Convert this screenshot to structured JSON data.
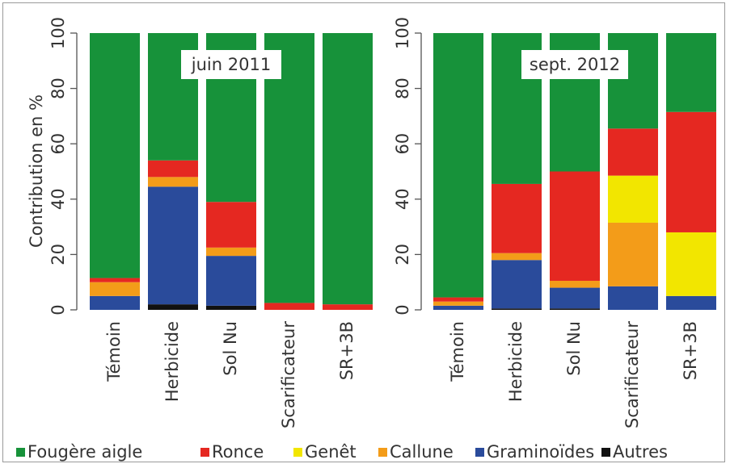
{
  "ylabel": "Contribution en %",
  "legend": [
    {
      "name": "Fougère aigle",
      "color": "#17923a"
    },
    {
      "name": "Ronce",
      "color": "#e52821"
    },
    {
      "name": "Genêt",
      "color": "#f2e600"
    },
    {
      "name": "Callune",
      "color": "#f39c19"
    },
    {
      "name": "Graminoïdes",
      "color": "#2a4b9b"
    },
    {
      "name": "Autres",
      "color": "#111111"
    }
  ],
  "chart_data": [
    {
      "type": "bar",
      "stacked": true,
      "title": "juin 2011",
      "ylim": [
        0,
        100
      ],
      "yticks": [
        0,
        20,
        40,
        60,
        80,
        100
      ],
      "categories": [
        "Témoin",
        "Herbicide",
        "Sol Nu",
        "Scarificateur",
        "SR+3B"
      ],
      "series": [
        {
          "name": "Autres",
          "color": "#111111",
          "values": [
            0,
            2,
            1.5,
            0,
            0
          ]
        },
        {
          "name": "Graminoïdes",
          "color": "#2a4b9b",
          "values": [
            5,
            42.5,
            18,
            0,
            0
          ]
        },
        {
          "name": "Callune",
          "color": "#f39c19",
          "values": [
            5,
            3.5,
            3,
            0,
            0
          ]
        },
        {
          "name": "Genêt",
          "color": "#f2e600",
          "values": [
            0,
            0,
            0,
            0,
            0
          ]
        },
        {
          "name": "Ronce",
          "color": "#e52821",
          "values": [
            1.5,
            6,
            16.5,
            2.5,
            2
          ]
        },
        {
          "name": "Fougère aigle",
          "color": "#17923a",
          "values": [
            88.5,
            46,
            61,
            97.5,
            98
          ]
        }
      ]
    },
    {
      "type": "bar",
      "stacked": true,
      "title": "sept. 2012",
      "ylim": [
        0,
        100
      ],
      "yticks": [
        0,
        20,
        40,
        60,
        80,
        100
      ],
      "categories": [
        "Témoin",
        "Herbicide",
        "Sol Nu",
        "Scarificateur",
        "SR+3B"
      ],
      "series": [
        {
          "name": "Autres",
          "color": "#111111",
          "values": [
            0,
            0.5,
            0.5,
            0,
            0
          ]
        },
        {
          "name": "Graminoïdes",
          "color": "#2a4b9b",
          "values": [
            1.5,
            17.5,
            7.5,
            8.5,
            5
          ]
        },
        {
          "name": "Callune",
          "color": "#f39c19",
          "values": [
            1.5,
            2.5,
            2.5,
            23,
            0
          ]
        },
        {
          "name": "Genêt",
          "color": "#f2e600",
          "values": [
            0,
            0,
            0,
            17,
            23
          ]
        },
        {
          "name": "Ronce",
          "color": "#e52821",
          "values": [
            1.5,
            25,
            39.5,
            17,
            43.5
          ]
        },
        {
          "name": "Fougère aigle",
          "color": "#17923a",
          "values": [
            95.5,
            54.5,
            50,
            34.5,
            28.5
          ]
        }
      ]
    }
  ]
}
